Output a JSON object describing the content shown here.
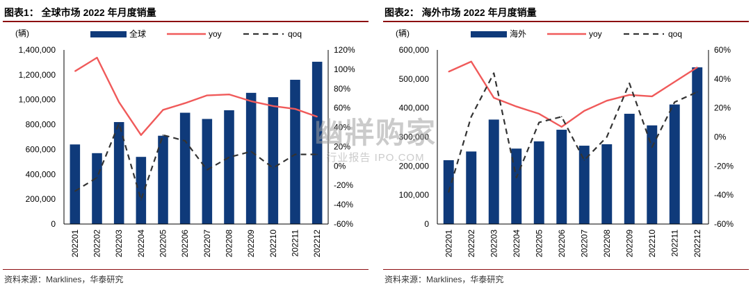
{
  "figures": [
    {
      "title": "图表1： 全球市场 2022 年月度销量",
      "source": "资料来源：Marklines，华泰研究"
    },
    {
      "title": "图表2： 海外市场 2022 年月度销量",
      "source": "资料来源：Marklines，华泰研究"
    }
  ],
  "watermark": {
    "main": "幽牂购家",
    "sub": "行业报告 IPO.COM"
  },
  "colors": {
    "bar": "#0f3a7a",
    "yoy": "#f05a5a",
    "qoq": "#333333",
    "rule": "#8c0e10"
  },
  "chart_data": [
    {
      "type": "bar",
      "unit_label": "(辆)",
      "categories": [
        "202201",
        "202202",
        "202203",
        "202204",
        "202205",
        "202206",
        "202207",
        "202208",
        "202209",
        "202210",
        "202211",
        "202212"
      ],
      "series": [
        {
          "name": "全球",
          "type": "bar",
          "axis": "left",
          "values": [
            640000,
            570000,
            820000,
            540000,
            710000,
            895000,
            845000,
            915000,
            1055000,
            1020000,
            1160000,
            1305000
          ]
        },
        {
          "name": "yoy",
          "type": "line",
          "axis": "right",
          "values": [
            98,
            112,
            66,
            32,
            58,
            65,
            73,
            74,
            67,
            62,
            59,
            51
          ]
        },
        {
          "name": "qoq",
          "type": "dashed-line",
          "axis": "right",
          "values": [
            -26,
            -12,
            44,
            -35,
            32,
            26,
            -4,
            9,
            15,
            -2,
            12,
            12
          ]
        }
      ],
      "left_axis": {
        "min": 0,
        "max": 1400000,
        "step": 200000,
        "ticks": [
          "0",
          "200,000",
          "400,000",
          "600,000",
          "800,000",
          "1,000,000",
          "1,200,000",
          "1,400,000"
        ]
      },
      "right_axis": {
        "min": -60,
        "max": 120,
        "step": 20,
        "ticks": [
          "-60%",
          "-40%",
          "-20%",
          "0%",
          "20%",
          "40%",
          "60%",
          "80%",
          "100%",
          "120%"
        ]
      },
      "legend_position": "top"
    },
    {
      "type": "bar",
      "unit_label": "(辆)",
      "categories": [
        "202201",
        "202202",
        "202203",
        "202204",
        "202205",
        "202206",
        "202207",
        "202208",
        "202209",
        "202210",
        "202211",
        "202212"
      ],
      "series": [
        {
          "name": "海外",
          "type": "bar",
          "axis": "left",
          "values": [
            220000,
            250000,
            360000,
            260000,
            285000,
            325000,
            270000,
            275000,
            380000,
            340000,
            412000,
            540000
          ]
        },
        {
          "name": "yoy",
          "type": "line",
          "axis": "right",
          "values": [
            45,
            52,
            27,
            21,
            16,
            7,
            18,
            25,
            29,
            28,
            38,
            48
          ]
        },
        {
          "name": "qoq",
          "type": "dashed-line",
          "axis": "right",
          "values": [
            -38,
            14,
            44,
            -28,
            10,
            14,
            -16,
            0,
            37,
            -7,
            24,
            31
          ]
        }
      ],
      "left_axis": {
        "min": 0,
        "max": 600000,
        "step": 100000,
        "ticks": [
          "0",
          "100,000",
          "200,000",
          "300,000",
          "400,000",
          "500,000",
          "600,000"
        ]
      },
      "right_axis": {
        "min": -60,
        "max": 60,
        "step": 20,
        "ticks": [
          "-60%",
          "-40%",
          "-20%",
          "0%",
          "20%",
          "40%",
          "60%"
        ]
      },
      "legend_position": "top"
    }
  ]
}
